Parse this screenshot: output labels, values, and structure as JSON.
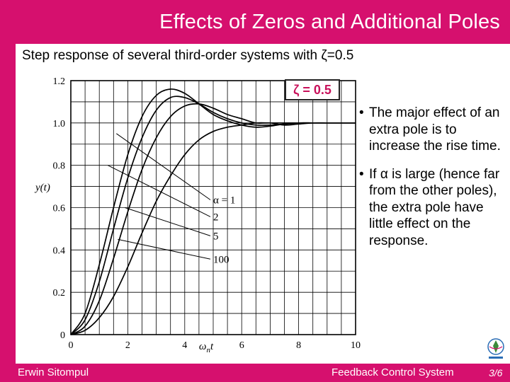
{
  "slide": {
    "title": "Effects of Zeros and Additional Poles",
    "subtitle": "Step response of several third-order systems with ζ=0.5",
    "zeta_label": "ζ = 0.5",
    "bullets": [
      {
        "marker": "•",
        "text": "The major effect of an extra pole is to increase the rise time."
      },
      {
        "marker": "•",
        "text": "If α is large (hence far from the other poles), the extra pole have little effect on the response."
      }
    ]
  },
  "footer": {
    "author": "Erwin Sitompul",
    "course": "Feedback Control System",
    "page": "3/6"
  },
  "colors": {
    "brand": "#d6106e",
    "zeta": "#c8105a"
  },
  "icons": {
    "logo": "university-logo-icon"
  },
  "chart_data": {
    "type": "line",
    "title": "",
    "xlabel": "ωnt",
    "xlabel_main": "ω",
    "xlabel_sub": "n",
    "xlabel_tail": "t",
    "ylabel": "y(t)",
    "xlim": [
      0,
      10
    ],
    "ylim": [
      0,
      1.2
    ],
    "xticks": [
      0,
      2,
      4,
      6,
      8,
      10
    ],
    "yticks": [
      0,
      0.2,
      0.4,
      0.6,
      0.8,
      1.0,
      1.2
    ],
    "ytick_labels": [
      "0",
      "0.2",
      "0.4",
      "0.6",
      "0.8",
      "1.0",
      "1.2"
    ],
    "grid": true,
    "x": [
      0,
      0.5,
      1,
      1.5,
      2,
      2.5,
      3,
      3.5,
      4,
      4.5,
      5,
      5.5,
      6,
      6.5,
      7,
      7.5,
      8,
      8.5,
      9,
      9.5,
      10
    ],
    "series": [
      {
        "name": "α = 1",
        "values": [
          0,
          0.02,
          0.08,
          0.18,
          0.32,
          0.48,
          0.63,
          0.75,
          0.85,
          0.92,
          0.96,
          0.98,
          0.99,
          1.0,
          1.0,
          1.0,
          1.0,
          1.0,
          1.0,
          1.0,
          1.0
        ]
      },
      {
        "name": "2",
        "values": [
          0,
          0.04,
          0.16,
          0.36,
          0.58,
          0.78,
          0.93,
          1.03,
          1.08,
          1.09,
          1.07,
          1.04,
          1.02,
          1.0,
          1.0,
          0.99,
          0.995,
          1.0,
          1.0,
          1.0,
          1.0
        ]
      },
      {
        "name": "5",
        "values": [
          0,
          0.07,
          0.25,
          0.5,
          0.74,
          0.93,
          1.06,
          1.12,
          1.12,
          1.09,
          1.05,
          1.02,
          1.0,
          0.99,
          0.99,
          0.995,
          1.0,
          1.0,
          1.0,
          1.0,
          1.0
        ]
      },
      {
        "name": "100",
        "values": [
          0,
          0.1,
          0.33,
          0.6,
          0.85,
          1.03,
          1.13,
          1.16,
          1.14,
          1.09,
          1.04,
          1.01,
          0.99,
          0.98,
          0.985,
          0.995,
          1.0,
          1.0,
          1.0,
          1.0,
          1.0
        ]
      }
    ],
    "annotation_points": [
      [
        1.6,
        0.95
      ],
      [
        1.3,
        0.8
      ],
      [
        1.9,
        0.6
      ],
      [
        1.65,
        0.45
      ]
    ]
  }
}
